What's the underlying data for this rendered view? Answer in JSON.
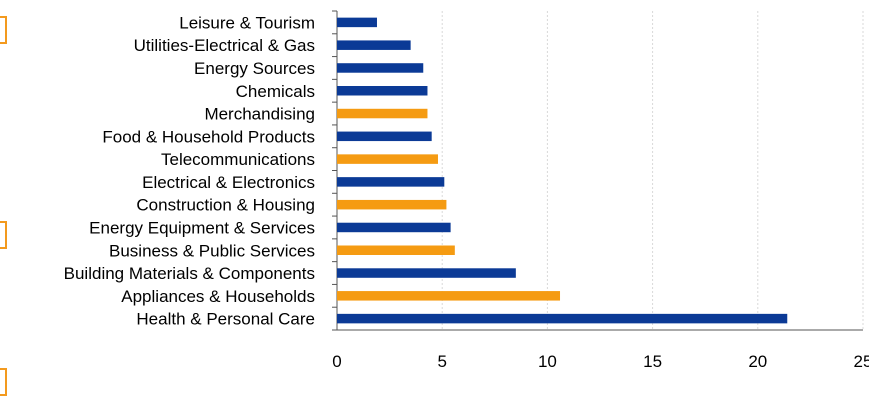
{
  "chart_data": {
    "type": "bar",
    "orientation": "horizontal",
    "categories": [
      "Leisure & Tourism",
      "Utilities-Electrical & Gas",
      "Energy Sources",
      "Chemicals",
      "Merchandising",
      "Food & Household Products",
      "Telecommunications",
      "Electrical & Electronics",
      "Construction & Housing",
      "Energy Equipment & Services",
      "Business & Public Services",
      "Building Materials & Components",
      "Appliances & Households",
      "Health & Personal Care"
    ],
    "values": [
      1.9,
      3.5,
      4.1,
      4.3,
      4.3,
      4.5,
      4.8,
      5.1,
      5.2,
      5.4,
      5.6,
      8.5,
      10.6,
      21.4
    ],
    "bar_colors": [
      "#0b3a96",
      "#0b3a96",
      "#0b3a96",
      "#0b3a96",
      "#f59b12",
      "#0b3a96",
      "#f59b12",
      "#0b3a96",
      "#f59b12",
      "#0b3a96",
      "#f59b12",
      "#0b3a96",
      "#f59b12",
      "#0b3a96"
    ],
    "x_ticks": [
      "0",
      "5",
      "10",
      "15",
      "20",
      "25"
    ],
    "xlim": [
      0,
      25
    ],
    "grid": "vertical-dotted",
    "title": "",
    "xlabel": "",
    "ylabel": ""
  },
  "colors": {
    "blue": "#0b3a96",
    "orange": "#f59b12",
    "grid": "#d9d9d9",
    "axis": "#555555",
    "edge_marks": "#f39a1e"
  }
}
